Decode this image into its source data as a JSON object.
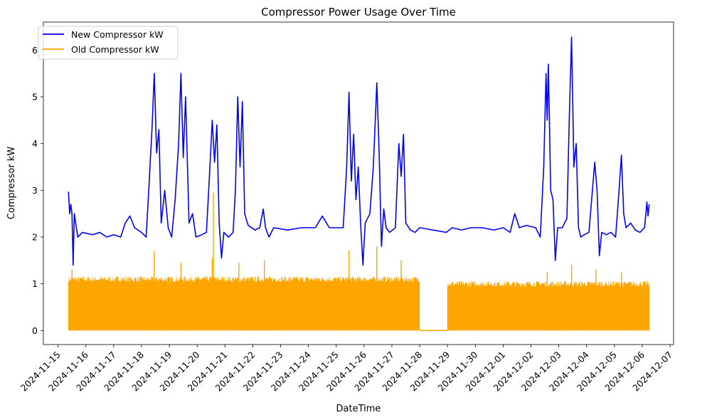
{
  "chart_data": {
    "type": "line",
    "title": "Compressor Power Usage Over Time",
    "xlabel": "DateTime",
    "ylabel": "Compressor kW",
    "xlim": [
      "2024-11-14T11:20",
      "2024-12-07T03:00"
    ],
    "ylim": [
      -0.3,
      6.6
    ],
    "y_ticks": [
      0,
      1,
      2,
      3,
      4,
      5,
      6
    ],
    "x_ticks": [
      "2024-11-15",
      "2024-11-16",
      "2024-11-17",
      "2024-11-18",
      "2024-11-19",
      "2024-11-20",
      "2024-11-21",
      "2024-11-22",
      "2024-11-23",
      "2024-11-24",
      "2024-11-25",
      "2024-11-26",
      "2024-11-27",
      "2024-11-28",
      "2024-11-29",
      "2024-11-30",
      "2024-12-01",
      "2024-12-02",
      "2024-12-03",
      "2024-12-04",
      "2024-12-05",
      "2024-12-06",
      "2024-12-07"
    ],
    "grid": false,
    "legend": "upper-left",
    "series": [
      {
        "name": "New Compressor kW",
        "color": "#0000ff",
        "points": [
          [
            "2024-11-15T09:00",
            2.97
          ],
          [
            "2024-11-15T10:00",
            2.5
          ],
          [
            "2024-11-15T11:00",
            2.7
          ],
          [
            "2024-11-15T12:00",
            2.5
          ],
          [
            "2024-11-15T13:00",
            1.4
          ],
          [
            "2024-11-15T14:00",
            2.5
          ],
          [
            "2024-11-15T17:00",
            2.0
          ],
          [
            "2024-11-15T21:00",
            2.1
          ],
          [
            "2024-11-16T06:00",
            2.05
          ],
          [
            "2024-11-16T12:00",
            2.1
          ],
          [
            "2024-11-16T18:00",
            2.0
          ],
          [
            "2024-11-17T00:00",
            2.05
          ],
          [
            "2024-11-17T06:00",
            2.0
          ],
          [
            "2024-11-17T10:00",
            2.3
          ],
          [
            "2024-11-17T14:00",
            2.45
          ],
          [
            "2024-11-17T18:00",
            2.2
          ],
          [
            "2024-11-18T00:00",
            2.1
          ],
          [
            "2024-11-18T04:00",
            2.0
          ],
          [
            "2024-11-18T06:00",
            2.9
          ],
          [
            "2024-11-18T09:00",
            4.3
          ],
          [
            "2024-11-18T11:00",
            5.5
          ],
          [
            "2024-11-18T13:00",
            3.8
          ],
          [
            "2024-11-18T15:00",
            4.3
          ],
          [
            "2024-11-18T17:00",
            2.3
          ],
          [
            "2024-11-18T20:00",
            3.0
          ],
          [
            "2024-11-18T23:00",
            2.2
          ],
          [
            "2024-11-19T02:00",
            2.0
          ],
          [
            "2024-11-19T05:00",
            2.8
          ],
          [
            "2024-11-19T08:00",
            4.0
          ],
          [
            "2024-11-19T10:00",
            5.5
          ],
          [
            "2024-11-19T12:00",
            3.7
          ],
          [
            "2024-11-19T14:00",
            5.0
          ],
          [
            "2024-11-19T17:00",
            2.3
          ],
          [
            "2024-11-19T20:00",
            2.5
          ],
          [
            "2024-11-19T23:00",
            2.0
          ],
          [
            "2024-11-20T04:00",
            2.05
          ],
          [
            "2024-11-20T08:00",
            2.1
          ],
          [
            "2024-11-20T11:00",
            3.5
          ],
          [
            "2024-11-20T13:00",
            4.5
          ],
          [
            "2024-11-20T15:00",
            3.6
          ],
          [
            "2024-11-20T17:00",
            4.4
          ],
          [
            "2024-11-20T19:00",
            2.3
          ],
          [
            "2024-11-20T21:00",
            1.55
          ],
          [
            "2024-11-20T23:00",
            2.1
          ],
          [
            "2024-11-21T03:00",
            2.0
          ],
          [
            "2024-11-21T07:00",
            2.1
          ],
          [
            "2024-11-21T09:00",
            3.0
          ],
          [
            "2024-11-21T11:00",
            5.0
          ],
          [
            "2024-11-21T13:00",
            3.5
          ],
          [
            "2024-11-21T15:00",
            4.9
          ],
          [
            "2024-11-21T17:00",
            2.5
          ],
          [
            "2024-11-21T20:00",
            2.25
          ],
          [
            "2024-11-22T02:00",
            2.15
          ],
          [
            "2024-11-22T06:00",
            2.2
          ],
          [
            "2024-11-22T09:00",
            2.6
          ],
          [
            "2024-11-22T11:00",
            2.2
          ],
          [
            "2024-11-22T14:00",
            2.0
          ],
          [
            "2024-11-22T18:00",
            2.2
          ],
          [
            "2024-11-23T06:00",
            2.15
          ],
          [
            "2024-11-23T18:00",
            2.2
          ],
          [
            "2024-11-24T06:00",
            2.2
          ],
          [
            "2024-11-24T12:00",
            2.45
          ],
          [
            "2024-11-24T18:00",
            2.2
          ],
          [
            "2024-11-25T00:00",
            2.2
          ],
          [
            "2024-11-25T06:00",
            2.2
          ],
          [
            "2024-11-25T09:00",
            3.5
          ],
          [
            "2024-11-25T11:00",
            5.1
          ],
          [
            "2024-11-25T13:00",
            3.2
          ],
          [
            "2024-11-25T15:00",
            4.2
          ],
          [
            "2024-11-25T17:00",
            2.8
          ],
          [
            "2024-11-25T19:00",
            3.5
          ],
          [
            "2024-11-25T21:00",
            2.3
          ],
          [
            "2024-11-25T23:00",
            1.4
          ],
          [
            "2024-11-26T01:00",
            2.3
          ],
          [
            "2024-11-26T05:00",
            2.5
          ],
          [
            "2024-11-26T08:00",
            3.5
          ],
          [
            "2024-11-26T11:00",
            5.3
          ],
          [
            "2024-11-26T13:00",
            3.8
          ],
          [
            "2024-11-26T15:00",
            1.8
          ],
          [
            "2024-11-26T17:00",
            2.6
          ],
          [
            "2024-11-26T19:00",
            2.2
          ],
          [
            "2024-11-26T22:00",
            2.1
          ],
          [
            "2024-11-27T03:00",
            2.2
          ],
          [
            "2024-11-27T06:00",
            4.0
          ],
          [
            "2024-11-27T08:00",
            3.3
          ],
          [
            "2024-11-27T10:00",
            4.2
          ],
          [
            "2024-11-27T12:00",
            2.3
          ],
          [
            "2024-11-27T16:00",
            2.15
          ],
          [
            "2024-11-27T20:00",
            2.1
          ],
          [
            "2024-11-28T00:00",
            2.2
          ],
          [
            "2024-11-28T23:00",
            2.1
          ],
          [
            "2024-11-29T04:00",
            2.2
          ],
          [
            "2024-11-29T12:00",
            2.15
          ],
          [
            "2024-11-29T20:00",
            2.2
          ],
          [
            "2024-11-30T06:00",
            2.2
          ],
          [
            "2024-11-30T16:00",
            2.15
          ],
          [
            "2024-12-01T00:00",
            2.2
          ],
          [
            "2024-12-01T06:00",
            2.1
          ],
          [
            "2024-12-01T10:00",
            2.5
          ],
          [
            "2024-12-01T14:00",
            2.2
          ],
          [
            "2024-12-01T20:00",
            2.25
          ],
          [
            "2024-12-02T04:00",
            2.2
          ],
          [
            "2024-12-02T08:00",
            2.0
          ],
          [
            "2024-12-02T11:00",
            3.5
          ],
          [
            "2024-12-02T13:00",
            5.5
          ],
          [
            "2024-12-02T14:00",
            4.5
          ],
          [
            "2024-12-02T15:00",
            5.7
          ],
          [
            "2024-12-02T17:00",
            3.0
          ],
          [
            "2024-12-02T19:00",
            2.8
          ],
          [
            "2024-12-02T21:00",
            1.5
          ],
          [
            "2024-12-02T23:00",
            2.2
          ],
          [
            "2024-12-03T03:00",
            2.2
          ],
          [
            "2024-12-03T07:00",
            2.4
          ],
          [
            "2024-12-03T09:00",
            4.5
          ],
          [
            "2024-12-03T11:00",
            6.28
          ],
          [
            "2024-12-03T13:00",
            3.5
          ],
          [
            "2024-12-03T15:00",
            4.0
          ],
          [
            "2024-12-03T17:00",
            2.2
          ],
          [
            "2024-12-03T19:00",
            2.0
          ],
          [
            "2024-12-03T22:00",
            2.05
          ],
          [
            "2024-12-04T02:00",
            2.1
          ],
          [
            "2024-12-04T05:00",
            3.0
          ],
          [
            "2024-12-04T07:00",
            3.6
          ],
          [
            "2024-12-04T09:00",
            3.0
          ],
          [
            "2024-12-04T11:00",
            1.6
          ],
          [
            "2024-12-04T13:00",
            2.1
          ],
          [
            "2024-12-04T17:00",
            2.05
          ],
          [
            "2024-12-04T21:00",
            2.1
          ],
          [
            "2024-12-05T01:00",
            2.0
          ],
          [
            "2024-12-05T04:00",
            3.0
          ],
          [
            "2024-12-05T06:00",
            3.75
          ],
          [
            "2024-12-05T08:00",
            2.5
          ],
          [
            "2024-12-05T10:00",
            2.2
          ],
          [
            "2024-12-05T14:00",
            2.3
          ],
          [
            "2024-12-05T18:00",
            2.15
          ],
          [
            "2024-12-05T22:00",
            2.1
          ],
          [
            "2024-12-06T02:00",
            2.2
          ],
          [
            "2024-12-06T04:00",
            2.75
          ],
          [
            "2024-12-06T05:00",
            2.45
          ],
          [
            "2024-12-06T06:00",
            2.7
          ]
        ]
      },
      {
        "name": "Old Compressor kW",
        "color": "#ffa500",
        "baseline": 0,
        "bands": [
          [
            "2024-11-15T09:00",
            "2024-11-28T00:00",
            1.1
          ],
          [
            "2024-11-29T00:00",
            "2024-12-06T06:00",
            1.0
          ]
        ],
        "gaps": [
          [
            "2024-11-28T00:00",
            "2024-11-29T00:00",
            0.0
          ]
        ],
        "peaks": [
          [
            "2024-11-15T12:00",
            1.3
          ],
          [
            "2024-11-18T11:00",
            1.7
          ],
          [
            "2024-11-19T10:00",
            1.45
          ],
          [
            "2024-11-20T13:00",
            1.55
          ],
          [
            "2024-11-20T14:00",
            2.95
          ],
          [
            "2024-11-21T12:00",
            1.45
          ],
          [
            "2024-11-22T10:00",
            1.5
          ],
          [
            "2024-11-25T11:00",
            1.72
          ],
          [
            "2024-11-26T11:00",
            1.8
          ],
          [
            "2024-11-27T08:00",
            1.5
          ],
          [
            "2024-12-02T14:00",
            1.25
          ],
          [
            "2024-12-03T11:00",
            1.4
          ],
          [
            "2024-12-04T08:00",
            1.3
          ],
          [
            "2024-12-05T06:00",
            1.25
          ]
        ]
      }
    ]
  }
}
